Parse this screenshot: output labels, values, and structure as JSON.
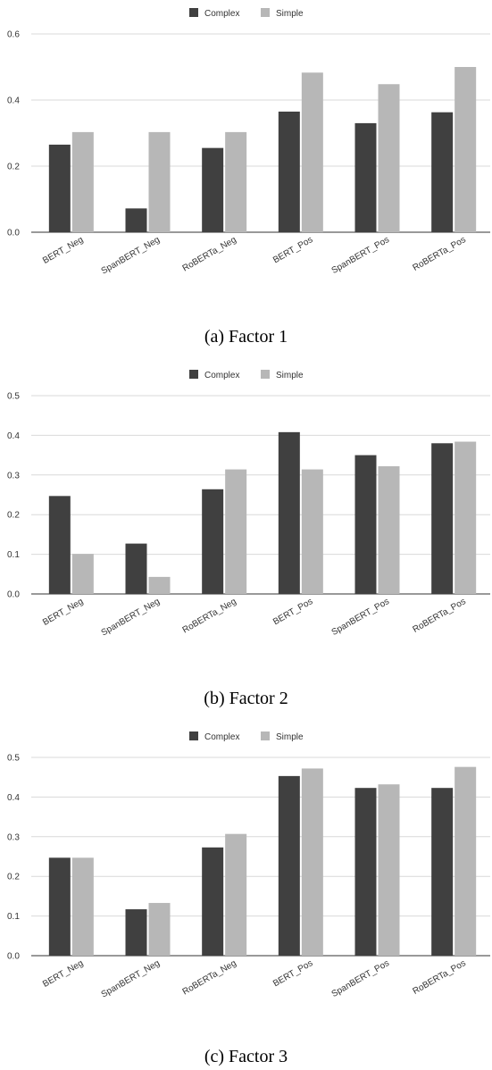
{
  "chart_data": [
    {
      "type": "bar",
      "caption": "(a) Factor 1",
      "categories": [
        "BERT_Neg",
        "SpanBERT_Neg",
        "RoBERTa_Neg",
        "BERT_Pos",
        "SpanBERT_Pos",
        "RoBERTa_Pos"
      ],
      "series": [
        {
          "name": "Complex",
          "color": "#404040",
          "values": [
            0.265,
            0.072,
            0.255,
            0.365,
            0.33,
            0.363
          ]
        },
        {
          "name": "Simple",
          "color": "#b7b7b7",
          "values": [
            0.303,
            0.303,
            0.303,
            0.483,
            0.448,
            0.5
          ]
        }
      ],
      "ylim": [
        0,
        0.6
      ],
      "yticks": [
        "0.0",
        "0.2",
        "0.4",
        "0.6"
      ],
      "grid": true,
      "legend": "top-center"
    },
    {
      "type": "bar",
      "caption": "(b) Factor 2",
      "categories": [
        "BERT_Neg",
        "SpanBERT_Neg",
        "RoBERTa_Neg",
        "BERT_Pos",
        "SpanBERT_Pos",
        "RoBERTa_Pos"
      ],
      "series": [
        {
          "name": "Complex",
          "color": "#404040",
          "values": [
            0.247,
            0.127,
            0.264,
            0.408,
            0.35,
            0.38
          ]
        },
        {
          "name": "Simple",
          "color": "#b7b7b7",
          "values": [
            0.101,
            0.043,
            0.314,
            0.314,
            0.322,
            0.384
          ]
        }
      ],
      "ylim": [
        0,
        0.5
      ],
      "yticks": [
        "0.0",
        "0.1",
        "0.2",
        "0.3",
        "0.4",
        "0.5"
      ],
      "grid": true,
      "legend": "top-center"
    },
    {
      "type": "bar",
      "caption": "(c) Factor 3",
      "categories": [
        "BERT_Neg",
        "SpanBERT_Neg",
        "RoBERTa_Neg",
        "BERT_Pos",
        "SpanBERT_Pos",
        "RoBERTa_Pos"
      ],
      "series": [
        {
          "name": "Complex",
          "color": "#404040",
          "values": [
            0.247,
            0.117,
            0.273,
            0.453,
            0.423,
            0.423
          ]
        },
        {
          "name": "Simple",
          "color": "#b7b7b7",
          "values": [
            0.247,
            0.133,
            0.307,
            0.472,
            0.432,
            0.476
          ]
        }
      ],
      "ylim": [
        0,
        0.5
      ],
      "yticks": [
        "0.0",
        "0.1",
        "0.2",
        "0.3",
        "0.4",
        "0.5"
      ],
      "grid": true,
      "legend": "top-center"
    }
  ]
}
